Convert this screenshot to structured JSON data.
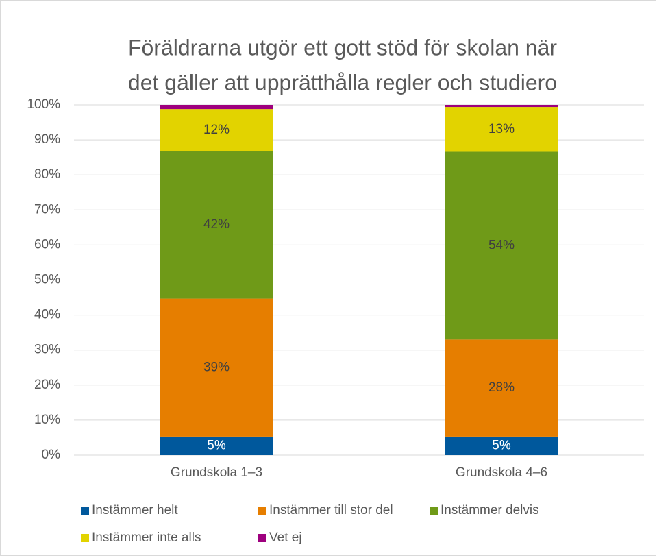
{
  "chart_data": {
    "type": "stacked_bar",
    "title": [
      "Föräldrarna utgör ett gott stöd för skolan när",
      "det gäller att upprätthålla regler och studiero"
    ],
    "categories": [
      "Grundskola 1–3",
      "Grundskola 4–6"
    ],
    "series": [
      {
        "name": "Instämmer helt",
        "color": "#00589c",
        "values": [
          5.3,
          5.3
        ],
        "value_labels": [
          "5%",
          "5%"
        ]
      },
      {
        "name": "Instämmer till stor del",
        "color": "#e67e00",
        "values": [
          39.4,
          27.7
        ],
        "value_labels": [
          "39%",
          "28%"
        ]
      },
      {
        "name": "Instämmer delvis",
        "color": "#6f9a18",
        "values": [
          42.1,
          53.6
        ],
        "value_labels": [
          "42%",
          "54%"
        ]
      },
      {
        "name": "Instämmer inte alls",
        "color": "#e2d300",
        "values": [
          12.0,
          12.8
        ],
        "value_labels": [
          "12%",
          "13%"
        ]
      },
      {
        "name": "Vet ej",
        "color": "#9e007e",
        "values": [
          1.2,
          0.6
        ],
        "value_labels": [
          null,
          null
        ]
      }
    ],
    "ylim": [
      0,
      100
    ],
    "yticks": [
      {
        "value": 0,
        "label": "0%"
      },
      {
        "value": 10,
        "label": "10%"
      },
      {
        "value": 20,
        "label": "20%"
      },
      {
        "value": 30,
        "label": "30%"
      },
      {
        "value": 40,
        "label": "40%"
      },
      {
        "value": 50,
        "label": "50%"
      },
      {
        "value": 60,
        "label": "60%"
      },
      {
        "value": 70,
        "label": "70%"
      },
      {
        "value": 80,
        "label": "80%"
      },
      {
        "value": 90,
        "label": "90%"
      },
      {
        "value": 100,
        "label": "100%"
      }
    ],
    "grid": true,
    "legend": "bottom"
  }
}
